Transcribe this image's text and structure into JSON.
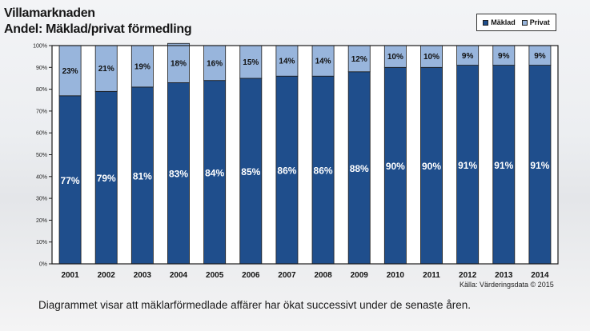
{
  "title_line1": "Villamarknaden",
  "title_line2": "Andel: Mäklad/privat förmedling",
  "source": "Källa: Värderingsdata  © 2015",
  "caption": "Diagrammet visar att mäklarförmedlade affärer har ökat successivt under de senaste åren.",
  "colors": {
    "maklad": "#1f4e8c",
    "privat": "#98b5dc",
    "frame": "#1a1a1a"
  },
  "chart_data": {
    "type": "bar",
    "stacked": true,
    "categories": [
      "2001",
      "2002",
      "2003",
      "2004",
      "2005",
      "2006",
      "2007",
      "2008",
      "2009",
      "2010",
      "2011",
      "2012",
      "2013",
      "2014"
    ],
    "series": [
      {
        "name": "Mäklad",
        "values": [
          77,
          79,
          81,
          83,
          84,
          85,
          86,
          86,
          88,
          90,
          90,
          91,
          91,
          91
        ],
        "labels": [
          "77%",
          "79%",
          "81%",
          "83%",
          "84%",
          "85%",
          "86%",
          "86%",
          "88%",
          "90%",
          "90%",
          "91%",
          "91%",
          "91%"
        ]
      },
      {
        "name": "Privat",
        "values": [
          23,
          21,
          19,
          18,
          16,
          15,
          14,
          14,
          12,
          10,
          10,
          9,
          9,
          9
        ],
        "labels": [
          "23%",
          "21%",
          "19%",
          "18%",
          "16%",
          "15%",
          "14%",
          "14%",
          "12%",
          "10%",
          "10%",
          "9%",
          "9%",
          "9%"
        ]
      }
    ],
    "yticks": [
      "0%",
      "10%",
      "20%",
      "30%",
      "40%",
      "50%",
      "60%",
      "70%",
      "80%",
      "90%",
      "100%"
    ],
    "ylim": [
      0,
      100
    ],
    "legend_position": "top-right",
    "grid": false
  }
}
